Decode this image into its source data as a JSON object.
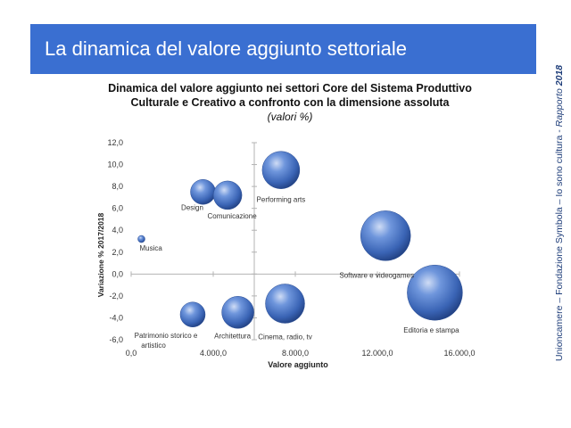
{
  "header": {
    "title": "La dinamica del valore aggiunto settoriale"
  },
  "sidebar": {
    "text_main": "Unioncamere – Fondazione Symbola – Io sono cultura - ",
    "text_italic": "Rapporto ",
    "text_year": "2018"
  },
  "colors": {
    "banner": "#3a6fd1",
    "bubble": "#3f6cc0",
    "axis": "#b3b3b3"
  },
  "chart_data": {
    "type": "bubble",
    "title_line1": "Dinamica del valore aggiunto nei settori Core del Sistema Produttivo",
    "title_line2": "Culturale e Creativo a confronto con la dimensione assoluta",
    "subtitle": "(valori %)",
    "xlabel": "Valore aggiunto",
    "ylabel": "Variazione % 2017/2018",
    "xlim": [
      0,
      16000
    ],
    "ylim": [
      -6,
      12
    ],
    "x_ticks": [
      "0,0",
      "4.000,0",
      "8.000,0",
      "12.000,0",
      "16.000,0"
    ],
    "y_ticks": [
      "12,0",
      "10,0",
      "8,0",
      "6,0",
      "4,0",
      "2,0",
      "0,0",
      "-2,0",
      "-4,0",
      "-6,0"
    ],
    "points": [
      {
        "label": "Musica",
        "x": 500,
        "y": 3.2,
        "size": 4
      },
      {
        "label": "Design",
        "x": 3500,
        "y": 7.5,
        "size": 14
      },
      {
        "label": "Comunicazione",
        "x": 4700,
        "y": 7.2,
        "size": 16
      },
      {
        "label": "Performing arts",
        "x": 7300,
        "y": 9.5,
        "size": 21
      },
      {
        "label": "Software e videogames",
        "x": 12400,
        "y": 3.5,
        "size": 28
      },
      {
        "label": "Editoria e stampa",
        "x": 14800,
        "y": -1.7,
        "size": 31
      },
      {
        "label": "Cinema, radio, tv",
        "x": 7500,
        "y": -2.7,
        "size": 22
      },
      {
        "label": "Architettura",
        "x": 5200,
        "y": -3.5,
        "size": 18
      },
      {
        "label": "Patrimonio storico e artistico",
        "x": 3000,
        "y": -3.7,
        "size": 14
      }
    ]
  }
}
